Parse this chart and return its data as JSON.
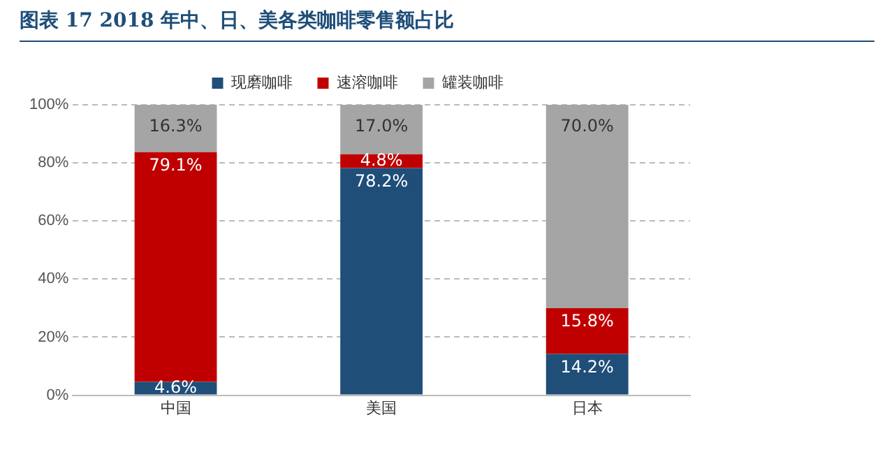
{
  "chart_data": {
    "type": "bar",
    "title": "图表 17   2018 年中、日、美各类咖啡零售额占比",
    "categories": [
      "中国",
      "美国",
      "日本"
    ],
    "stacked": true,
    "series": [
      {
        "name": "现磨咖啡",
        "color": "#1f4e79",
        "values": [
          4.6,
          78.2,
          14.2
        ]
      },
      {
        "name": "速溶咖啡",
        "color": "#c00000",
        "values": [
          79.1,
          4.8,
          15.8
        ]
      },
      {
        "name": "罐装咖啡",
        "color": "#a5a5a5",
        "values": [
          16.3,
          17.0,
          70.0
        ]
      }
    ],
    "value_labels": [
      [
        "4.6%",
        "78.2%",
        "14.2%"
      ],
      [
        "79.1%",
        "4.8%",
        "15.8%"
      ],
      [
        "16.3%",
        "17.0%",
        "70.0%"
      ]
    ],
    "ylim": [
      0,
      100
    ],
    "yticks": [
      {
        "value": 0,
        "label": "0%"
      },
      {
        "value": 20,
        "label": "20%"
      },
      {
        "value": 40,
        "label": "40%"
      },
      {
        "value": 60,
        "label": "60%"
      },
      {
        "value": 80,
        "label": "80%"
      },
      {
        "value": 100,
        "label": "100%"
      }
    ],
    "grid": "y",
    "legend": "top"
  }
}
